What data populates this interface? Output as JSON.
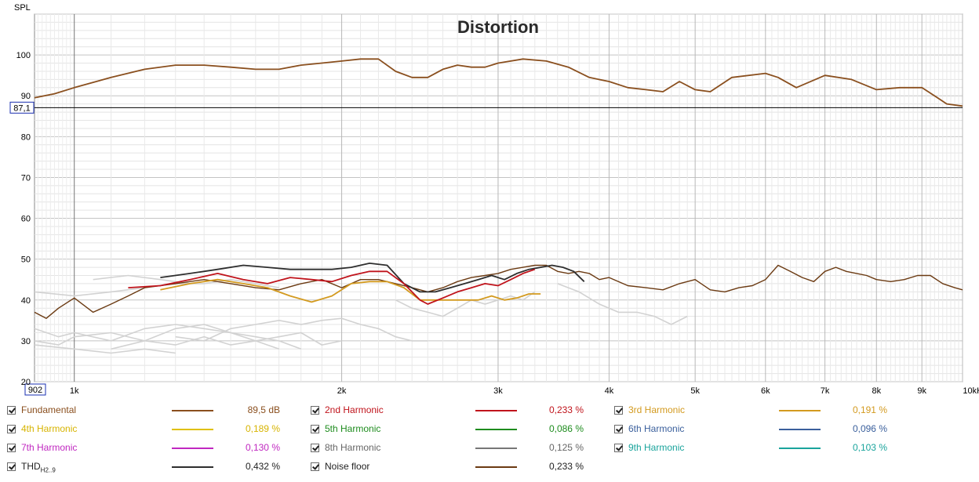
{
  "chart_data": {
    "type": "line",
    "title": "Distortion",
    "ylabel": "SPL",
    "xscale": "log",
    "xlim": [
      902,
      10000
    ],
    "ylim": [
      20,
      110
    ],
    "cursor": {
      "x_readout": "902",
      "y_readout": "87,1",
      "y_value": 87.1
    },
    "x_tick_labels": [
      {
        "label": "1k",
        "value": 1000
      },
      {
        "label": "2k",
        "value": 2000
      },
      {
        "label": "3k",
        "value": 3000
      },
      {
        "label": "4k",
        "value": 4000
      },
      {
        "label": "5k",
        "value": 5000
      },
      {
        "label": "6k",
        "value": 6000
      },
      {
        "label": "7k",
        "value": 7000
      },
      {
        "label": "8k",
        "value": 8000
      },
      {
        "label": "9k",
        "value": 9000
      },
      {
        "label": "10kHz",
        "value": 10000
      }
    ],
    "y_ticks": [
      20,
      30,
      40,
      50,
      60,
      70,
      80,
      90,
      100
    ],
    "grid": true,
    "series": [
      {
        "name": "Fundamental",
        "color": "#8a4f1e",
        "x": [
          902,
          950,
          1000,
          1100,
          1200,
          1300,
          1400,
          1500,
          1600,
          1700,
          1800,
          1900,
          2000,
          2100,
          2200,
          2300,
          2400,
          2500,
          2600,
          2700,
          2800,
          2900,
          3000,
          3200,
          3400,
          3600,
          3800,
          4000,
          4200,
          4400,
          4600,
          4800,
          5000,
          5200,
          5500,
          6000,
          6200,
          6500,
          7000,
          7500,
          8000,
          8500,
          9000,
          9300,
          9600,
          10000
        ],
        "y": [
          89.5,
          90.5,
          92,
          94.5,
          96.5,
          97.5,
          97.5,
          97,
          96.5,
          96.5,
          97.5,
          98,
          98.5,
          99,
          99,
          96,
          94.5,
          94.5,
          96.5,
          97.5,
          97,
          97,
          98,
          99,
          98.5,
          97,
          94.5,
          93.5,
          92,
          91.5,
          91,
          93.5,
          91.5,
          91,
          94.5,
          95.5,
          94.5,
          92,
          95,
          94,
          91.5,
          92,
          92,
          90,
          88,
          87.5
        ]
      },
      {
        "name": "2nd Harmonic",
        "color": "#c0141c",
        "x": [
          1150,
          1250,
          1350,
          1450,
          1550,
          1650,
          1750,
          1850,
          1950,
          2050,
          2150,
          2250,
          2350,
          2450,
          2500,
          2600,
          2700,
          2800,
          2900,
          3000,
          3100,
          3200,
          3300
        ],
        "y": [
          43,
          43.5,
          45,
          46.5,
          45,
          44,
          45.5,
          45,
          44.5,
          46,
          47,
          47,
          44,
          40,
          39,
          40.5,
          42,
          43,
          44,
          43.5,
          45,
          46.5,
          47.5
        ]
      },
      {
        "name": "3rd Harmonic",
        "color": "#d39a1f",
        "x": [
          1250,
          1350,
          1450,
          1550,
          1650,
          1750,
          1850,
          1950,
          2050,
          2150,
          2250,
          2350,
          2450,
          2850,
          2950,
          3050,
          3150,
          3250,
          3350
        ],
        "y": [
          42.5,
          44,
          45,
          44,
          43,
          41,
          39.5,
          41,
          44,
          44.5,
          44.5,
          43,
          40,
          40,
          41,
          40,
          40.5,
          41.5,
          41.5
        ]
      },
      {
        "name": "4th Harmonic",
        "color": "#e0c000",
        "x": [],
        "y": []
      },
      {
        "name": "5th Harmonic",
        "color": "#1e8c1e",
        "x": [],
        "y": []
      },
      {
        "name": "6th Harmonic",
        "color": "#3a5f9c",
        "x": [],
        "y": []
      },
      {
        "name": "7th Harmonic",
        "color": "#c028c0",
        "x": [],
        "y": []
      },
      {
        "name": "8th Harmonic",
        "color": "#777777",
        "x": [],
        "y": []
      },
      {
        "name": "9th Harmonic",
        "color": "#1aa49c",
        "x": [],
        "y": []
      },
      {
        "name": "THD",
        "color": "#2e2e2e",
        "x": [
          1250,
          1350,
          1450,
          1550,
          1650,
          1750,
          1850,
          1950,
          2050,
          2150,
          2250,
          2350,
          2450,
          2550,
          2650,
          2750,
          2850,
          2950,
          3050,
          3150,
          3250,
          3350,
          3450,
          3550,
          3650,
          3750
        ],
        "y": [
          45.5,
          46.5,
          47.5,
          48.5,
          48,
          47.5,
          47.5,
          47.5,
          48,
          49,
          48.5,
          44,
          42,
          42,
          43,
          44,
          45,
          46,
          45,
          46.5,
          47.5,
          48,
          48.5,
          48,
          47,
          44.5
        ]
      },
      {
        "name": "Noise floor",
        "color": "#6b3a12",
        "x": [
          902,
          930,
          960,
          1000,
          1050,
          1100,
          1150,
          1200,
          1300,
          1400,
          1500,
          1600,
          1700,
          1800,
          1900,
          2000,
          2100,
          2200,
          2300,
          2400,
          2500,
          2600,
          2700,
          2800,
          2900,
          3000,
          3100,
          3200,
          3300,
          3400,
          3500,
          3600,
          3700,
          3800,
          3900,
          4000,
          4200,
          4400,
          4600,
          4800,
          5000,
          5200,
          5400,
          5600,
          5800,
          6000,
          6200,
          6400,
          6600,
          6800,
          7000,
          7200,
          7400,
          7600,
          7800,
          8000,
          8300,
          8600,
          8900,
          9200,
          9500,
          9800,
          10000
        ],
        "y": [
          37,
          35.5,
          38,
          40.5,
          37,
          39,
          41,
          43,
          44,
          45,
          44,
          43,
          42.5,
          44,
          45,
          43,
          45,
          45,
          44,
          43,
          42,
          43,
          44.5,
          45.5,
          46,
          46.5,
          47.5,
          48,
          48.5,
          48.5,
          47,
          46.5,
          47,
          46.5,
          45,
          45.5,
          43.5,
          43,
          42.5,
          44,
          45,
          42.5,
          42,
          43,
          43.5,
          45,
          48.5,
          47,
          45.5,
          44.5,
          47,
          48,
          47,
          46.5,
          46,
          45,
          44.5,
          45,
          46,
          46,
          44,
          43,
          42.5
        ]
      }
    ]
  },
  "legend": [
    {
      "label": "Fundamental",
      "value": "89,5 dB",
      "color": "#8a4f1e",
      "text_color": "#8a4f1e"
    },
    {
      "label": "2nd Harmonic",
      "value": "0,233 %",
      "color": "#c0141c",
      "text_color": "#c0141c"
    },
    {
      "label": "3rd Harmonic",
      "value": "0,191 %",
      "color": "#d39a1f",
      "text_color": "#d39a1f"
    },
    {
      "label": "4th Harmonic",
      "value": "0,189 %",
      "color": "#e0c000",
      "text_color": "#d7b400"
    },
    {
      "label": "5th Harmonic",
      "value": "0,086 %",
      "color": "#1e8c1e",
      "text_color": "#1e8c1e"
    },
    {
      "label": "6th Harmonic",
      "value": "0,096 %",
      "color": "#3a5f9c",
      "text_color": "#3a5f9c"
    },
    {
      "label": "7th Harmonic",
      "value": "0,130 %",
      "color": "#c028c0",
      "text_color": "#c028c0"
    },
    {
      "label": "8th Harmonic",
      "value": "0,125 %",
      "color": "#777777",
      "text_color": "#666666"
    },
    {
      "label": "9th Harmonic",
      "value": "0,103 %",
      "color": "#1aa49c",
      "text_color": "#1aa49c"
    },
    {
      "label": "THD",
      "sub": "H2..9",
      "value": "0,432 %",
      "color": "#2e2e2e",
      "text_color": "#222222"
    },
    {
      "label": "Noise floor",
      "value": "0,233 %",
      "color": "#6b3a12",
      "text_color": "#222222"
    }
  ]
}
